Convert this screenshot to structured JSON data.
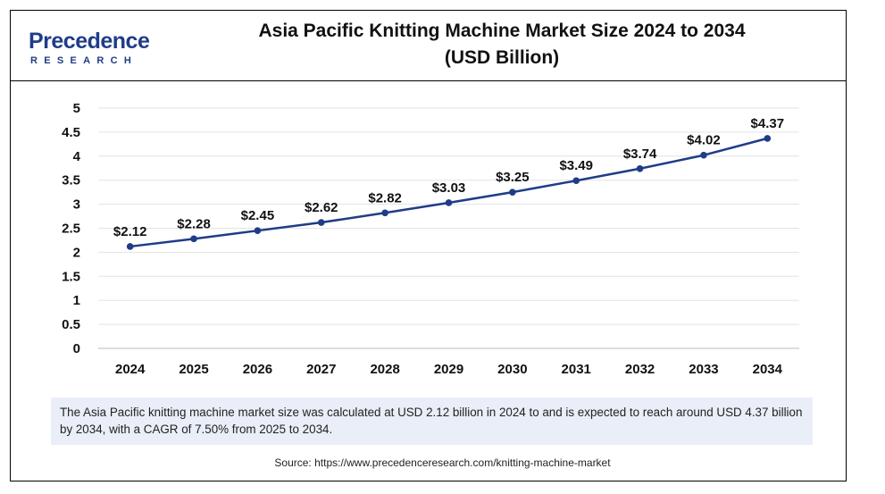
{
  "brand": {
    "logo_main": "Precedence",
    "logo_sub": "RESEARCH"
  },
  "header": {
    "title_line1": "Asia Pacific Knitting Machine Market Size 2024 to 2034",
    "title_line2": "(USD Billion)"
  },
  "colors": {
    "line": "#1f3c88",
    "grid": "#e3e3e3",
    "note_bg": "#e9eef8"
  },
  "chart_data": {
    "type": "line",
    "title": "Asia Pacific Knitting Machine Market Size 2024 to 2034 (USD Billion)",
    "xlabel": "",
    "ylabel": "",
    "x": [
      "2024",
      "2025",
      "2026",
      "2027",
      "2028",
      "2029",
      "2030",
      "2031",
      "2032",
      "2033",
      "2034"
    ],
    "series": [
      {
        "values": [
          2.12,
          2.28,
          2.45,
          2.62,
          2.82,
          3.03,
          3.25,
          3.49,
          3.74,
          4.02,
          4.37
        ],
        "labels": [
          "$2.12",
          "$2.28",
          "$2.45",
          "$2.62",
          "$2.82",
          "$3.03",
          "$3.25",
          "$3.49",
          "$3.74",
          "$4.02",
          "$4.37"
        ]
      }
    ],
    "ylim": [
      0,
      5
    ],
    "yticks": [
      "0",
      "0.5",
      "1",
      "1.5",
      "2",
      "2.5",
      "3",
      "3.5",
      "4",
      "4.5",
      "5"
    ],
    "grid": true,
    "legend": "none"
  },
  "note": {
    "text": "The Asia Pacific knitting machine market size was calculated at USD 2.12 billion in 2024 to and is expected to reach around USD 4.37 billion by 2034, with a CAGR of 7.50% from 2025 to 2034."
  },
  "source": {
    "text": "Source: https://www.precedenceresearch.com/knitting-machine-market"
  }
}
